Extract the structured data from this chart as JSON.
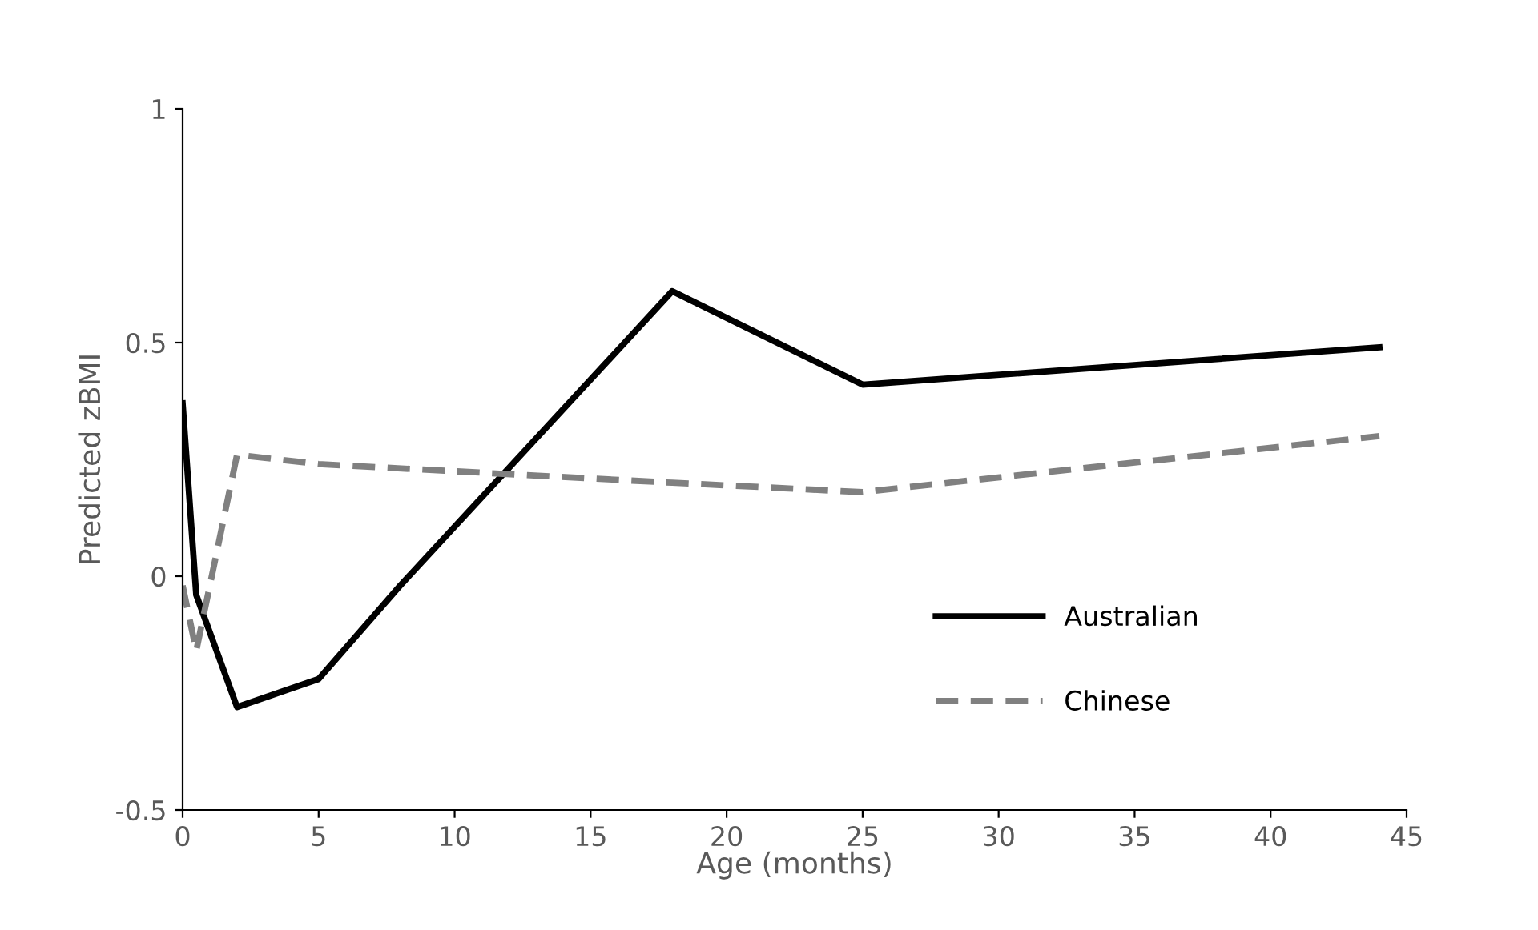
{
  "chart_data": {
    "type": "line",
    "xlabel": "Age (months)",
    "ylabel": "Predicted zBMI",
    "xlim": [
      0,
      45
    ],
    "xticks": [
      0,
      5,
      10,
      15,
      20,
      25,
      30,
      35,
      40,
      45
    ],
    "ylim": [
      -0.5,
      1
    ],
    "yticks": [
      -0.5,
      0,
      0.5,
      1
    ],
    "grid": false,
    "legend": "bottom right",
    "series": [
      {
        "name": "Australian",
        "color": "#000000",
        "line_style": "solid",
        "x": [
          0,
          0.5,
          2,
          5,
          8,
          18,
          25,
          44
        ],
        "values": [
          0.37,
          -0.04,
          -0.28,
          -0.22,
          -0.02,
          0.61,
          0.41,
          0.49
        ]
      },
      {
        "name": "Chinese",
        "color": "#808080",
        "line_style": "dashed",
        "x": [
          0,
          0.5,
          2,
          5,
          18,
          25,
          44
        ],
        "values": [
          -0.02,
          -0.16,
          0.26,
          0.24,
          0.2,
          0.18,
          0.3
        ]
      }
    ]
  }
}
